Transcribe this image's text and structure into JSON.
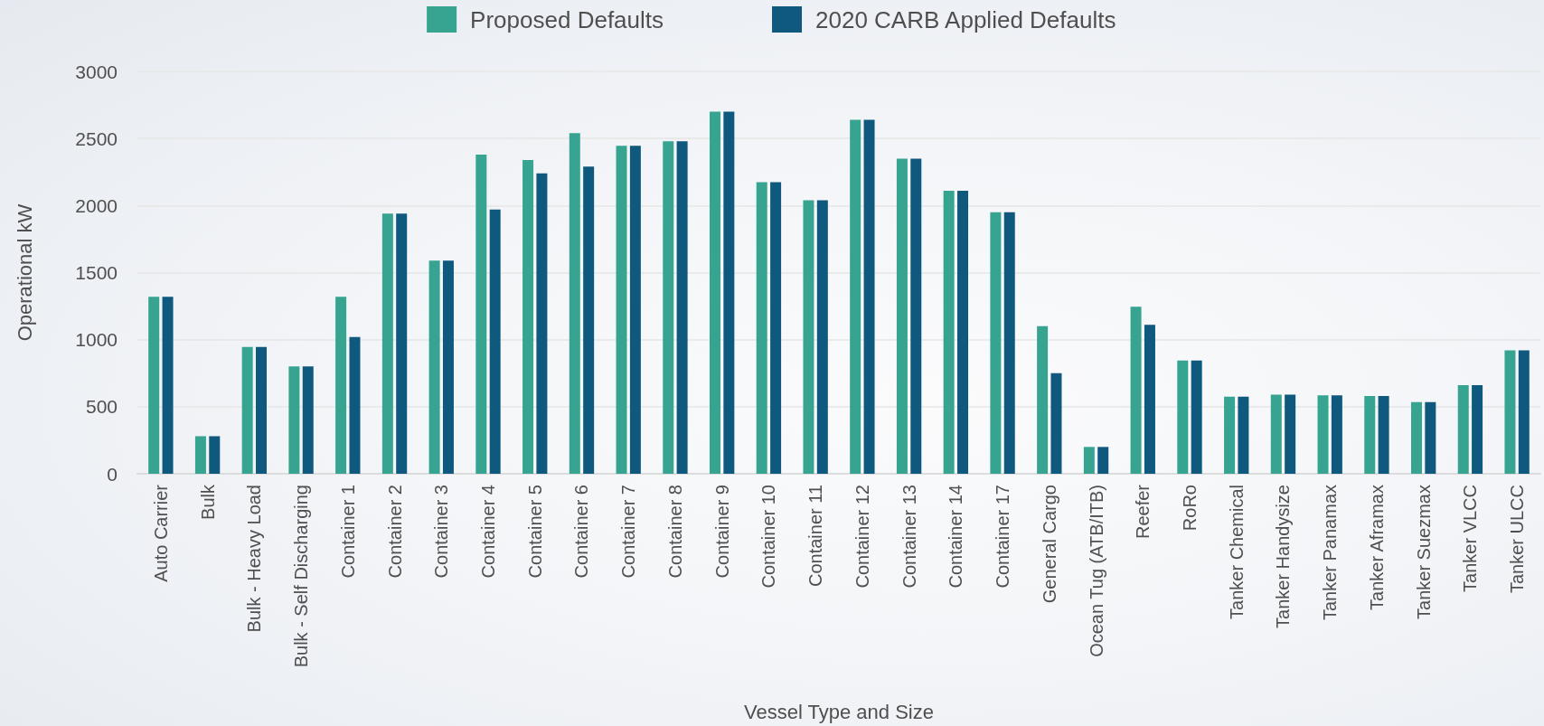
{
  "chart_data": {
    "type": "bar",
    "xlabel": "Vessel Type and Size",
    "ylabel": "Operational kW",
    "categories": [
      "Auto Carrier",
      "Bulk",
      "Bulk - Heavy Load",
      "Bulk - Self Discharging",
      "Container 1",
      "Container 2",
      "Container 3",
      "Container 4",
      "Container 5",
      "Container 6",
      "Container 7",
      "Container 8",
      "Container 9",
      "Container 10",
      "Container 11",
      "Container 12",
      "Container 13",
      "Container 14",
      "Container 17",
      "General Cargo",
      "Ocean Tug (ATB/ITB)",
      "Reefer",
      "RoRo",
      "Tanker Chemical",
      "Tanker Handysize",
      "Tanker Panamax",
      "Tanker Aframax",
      "Tanker Suezmax",
      "Tanker VLCC",
      "Tanker ULCC"
    ],
    "series": [
      {
        "name": "Proposed Defaults",
        "color": "#36a491",
        "values": [
          1320,
          280,
          945,
          800,
          1320,
          1940,
          1590,
          2380,
          2340,
          2540,
          2445,
          2480,
          2700,
          2175,
          2040,
          2640,
          2350,
          2110,
          1950,
          1100,
          200,
          1245,
          845,
          575,
          590,
          585,
          580,
          535,
          660,
          920
        ]
      },
      {
        "name": "2020 CARB Applied Defaults",
        "color": "#10597e",
        "values": [
          1320,
          280,
          945,
          800,
          1020,
          1940,
          1590,
          1970,
          2240,
          2290,
          2445,
          2480,
          2700,
          2175,
          2040,
          2640,
          2350,
          2110,
          1950,
          750,
          200,
          1110,
          845,
          575,
          590,
          585,
          580,
          535,
          660,
          920
        ]
      }
    ],
    "ylim": [
      0,
      3000
    ],
    "yticks": [
      0,
      500,
      1000,
      1500,
      2000,
      2500,
      3000
    ],
    "grid": "y",
    "legend": "top"
  }
}
